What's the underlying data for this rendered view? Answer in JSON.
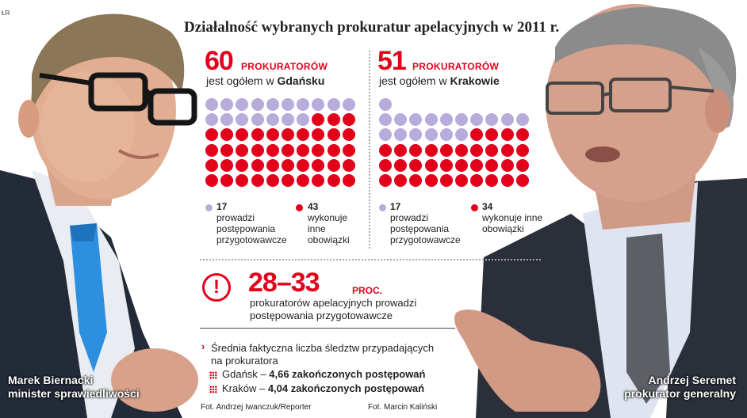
{
  "header": {
    "corner_label": "ŁR",
    "title": "Działalność wybranych prokuratur apelacyjnych w 2011 r."
  },
  "colors": {
    "red": "#e3001b",
    "lavender": "#b7acdc"
  },
  "gdansk": {
    "total": "60",
    "total_label": "PROKURATORÓW",
    "sub_prefix": "jest ogółem w ",
    "city": "Gdańsku",
    "lavender_count": "17",
    "lavender_text": "prowadzi\npostępowania\nprzygotowawcze",
    "red_count": "43",
    "red_text": "wykonuje\ninne\nobowiązki",
    "dots_lavender": 17,
    "dots_red": 43
  },
  "krakow": {
    "total": "51",
    "total_label": "PROKURATORÓW",
    "sub_prefix": "jest ogółem w ",
    "city": "Krakowie",
    "lavender_count": "17",
    "lavender_text": "prowadzi\npostępowania\nprzygotowawcze",
    "red_count": "34",
    "red_text": "wykonuje inne\nobowiązki",
    "dots_lavender": 17,
    "dots_red": 34
  },
  "range": {
    "icon_glyph": "!",
    "value": "28–33",
    "unit": "PROC.",
    "text": "prokuratorów apelacyjnych prowadzi\npostępowania przygotowawcze"
  },
  "average": {
    "bullet": "›",
    "heading": "Średnia faktyczna liczba śledztw przypadających\nna prokuratora",
    "rows": [
      {
        "city": "Gdańsk – ",
        "value": "4,66 zakończonych postępowań"
      },
      {
        "city": "Kraków – ",
        "value": "4,04 zakończonych postępowań"
      }
    ]
  },
  "credits": {
    "left": "Fot. Andrzej Iwanczuk/Reporter",
    "right": "Fot. Marcin Kaliński"
  },
  "people": {
    "left": "Marek Biernacki\nminister sprawiedliwości",
    "right": "Andrzej Seremet\nprokurator generalny"
  }
}
